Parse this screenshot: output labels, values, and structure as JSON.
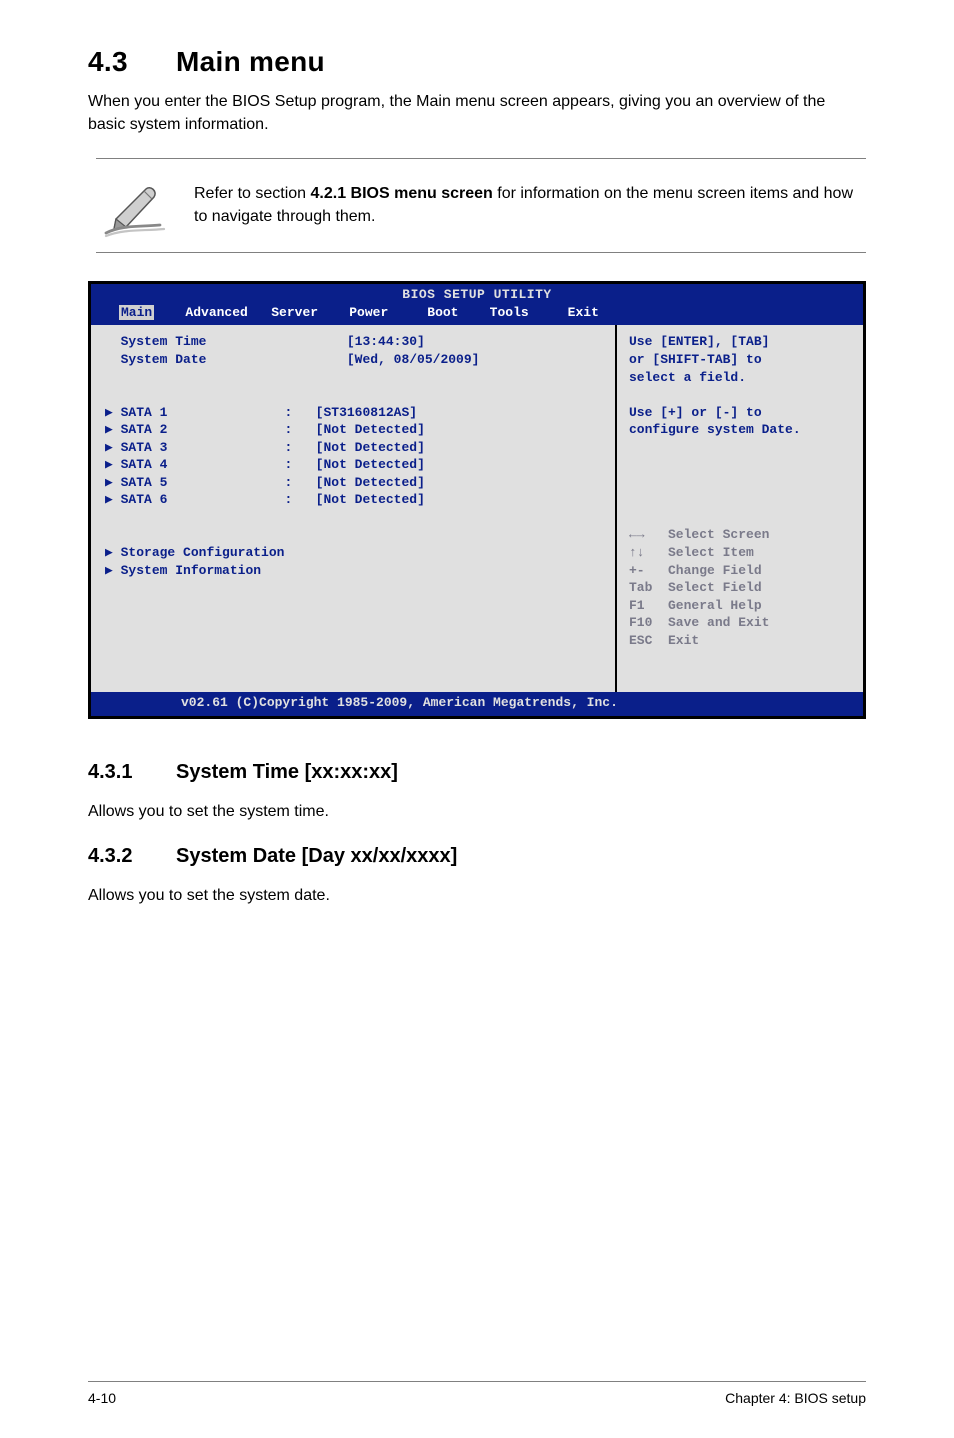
{
  "section": {
    "number": "4.3",
    "title": "Main menu",
    "intro": "When you enter the BIOS Setup program, the Main menu screen appears, giving you an overview of the basic system information."
  },
  "note": {
    "text": "Refer to section 4.2.1 BIOS menu screen for information on the menu screen items and how to navigate through them.",
    "bold_fragment": "4.2.1 BIOS menu screen",
    "before": "Refer to section ",
    "after": " for information on the menu screen items and how to navigate through them."
  },
  "bios": {
    "title": "BIOS SETUP UTILITY",
    "menubar": {
      "selected": "Main",
      "rest": "    Advanced   Server    Power     Boot    Tools     Exit"
    },
    "left_lines": [
      "System Time                  [13:44:30]",
      "System Date                  [Wed, 08/05/2009]",
      "",
      "",
      "SATA 1               :   [ST3160812AS]",
      "SATA 2               :   [Not Detected]",
      "SATA 3               :   [Not Detected]",
      "SATA 4               :   [Not Detected]",
      "SATA 5               :   [Not Detected]",
      "SATA 6               :   [Not Detected]",
      "",
      "",
      "Storage Configuration",
      "System Information",
      "",
      "",
      "",
      "",
      "",
      ""
    ],
    "left_arrows": {
      "4": "▶ ",
      "5": "▶ ",
      "6": "▶ ",
      "7": "▶ ",
      "8": "▶ ",
      "9": "▶ ",
      "12": "▶ ",
      "13": "▶ "
    },
    "right_lines_top": [
      "Use [ENTER], [TAB]",
      "or [SHIFT-TAB] to",
      "select a field.",
      "",
      "Use [+] or [-] to",
      "configure system Date.",
      "",
      "",
      "",
      "",
      ""
    ],
    "right_lines_gray": [
      "←→   Select Screen",
      "↑↓   Select Item",
      "+-   Change Field",
      "Tab  Select Field",
      "F1   General Help",
      "F10  Save and Exit",
      "ESC  Exit",
      ""
    ],
    "footer": "v02.61 (C)Copyright 1985-2009, American Megatrends, Inc."
  },
  "sub1": {
    "number": "4.3.1",
    "title": "System Time [xx:xx:xx]",
    "body": "Allows you to set the system time."
  },
  "sub2": {
    "number": "4.3.2",
    "title": "System Date [Day xx/xx/xxxx]",
    "body": "Allows you to set the system date."
  },
  "pagefoot": {
    "left": "4-10",
    "right": "Chapter 4: BIOS setup"
  },
  "colors": {
    "bios_bg": "#0a1f8a",
    "bios_panel": "#e0e0e0",
    "bios_text": "#0a1f8a",
    "gray_key": "#7a7a8a"
  }
}
